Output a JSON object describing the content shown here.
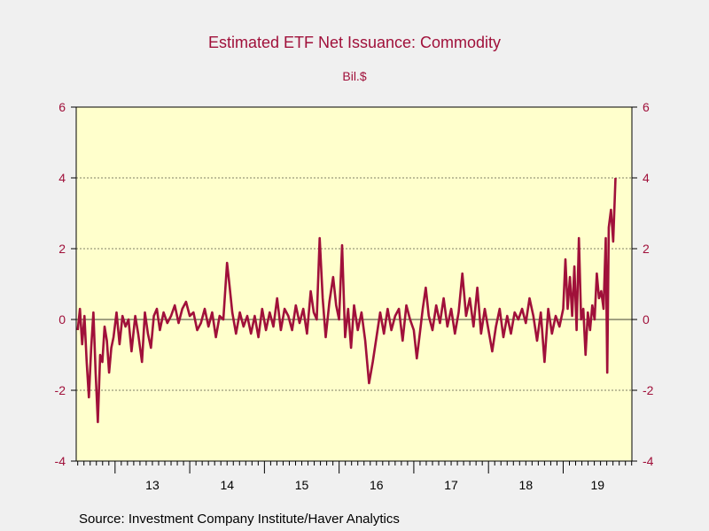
{
  "chart_data": {
    "type": "line",
    "title": "Estimated ETF Net Issuance: Commodity",
    "subtitle": "Bil.$",
    "source": "Source:  Investment Company Institute/Haver Analytics",
    "ylabel": "Bil.$",
    "ylim": [
      -4,
      6
    ],
    "yticks": [
      -4,
      -2,
      0,
      2,
      4,
      6
    ],
    "ytick_labels": [
      "-4",
      "-2",
      "0",
      "2",
      "4",
      "6"
    ],
    "gridlines_at": [
      -2,
      0,
      2,
      4
    ],
    "xlim": [
      2012.48,
      2019.92
    ],
    "year_labels": [
      "13",
      "14",
      "15",
      "16",
      "17",
      "18",
      "19"
    ],
    "year_boundaries": [
      2013,
      2014,
      2015,
      2016,
      2017,
      2018,
      2019
    ],
    "series": [
      {
        "name": "Estimated ETF Net Issuance: Commodity",
        "color": "#a0103a",
        "points": [
          [
            2012.5,
            -0.3
          ],
          [
            2012.53,
            0.3
          ],
          [
            2012.56,
            -0.7
          ],
          [
            2012.59,
            0.1
          ],
          [
            2012.62,
            -1.2
          ],
          [
            2012.65,
            -2.2
          ],
          [
            2012.68,
            -0.8
          ],
          [
            2012.71,
            0.2
          ],
          [
            2012.74,
            -1.5
          ],
          [
            2012.77,
            -2.9
          ],
          [
            2012.8,
            -1.0
          ],
          [
            2012.83,
            -1.2
          ],
          [
            2012.86,
            -0.2
          ],
          [
            2012.89,
            -0.6
          ],
          [
            2012.92,
            -1.5
          ],
          [
            2012.95,
            -0.8
          ],
          [
            2012.98,
            -0.5
          ],
          [
            2013.02,
            0.2
          ],
          [
            2013.06,
            -0.7
          ],
          [
            2013.1,
            0.1
          ],
          [
            2013.14,
            -0.2
          ],
          [
            2013.18,
            0.0
          ],
          [
            2013.22,
            -0.9
          ],
          [
            2013.27,
            0.1
          ],
          [
            2013.31,
            -0.4
          ],
          [
            2013.36,
            -1.2
          ],
          [
            2013.4,
            0.2
          ],
          [
            2013.44,
            -0.4
          ],
          [
            2013.48,
            -0.8
          ],
          [
            2013.52,
            0.1
          ],
          [
            2013.56,
            0.3
          ],
          [
            2013.6,
            -0.3
          ],
          [
            2013.65,
            0.2
          ],
          [
            2013.7,
            -0.1
          ],
          [
            2013.75,
            0.1
          ],
          [
            2013.8,
            0.4
          ],
          [
            2013.85,
            -0.1
          ],
          [
            2013.9,
            0.3
          ],
          [
            2013.95,
            0.5
          ],
          [
            2014.0,
            0.1
          ],
          [
            2014.05,
            0.2
          ],
          [
            2014.1,
            -0.3
          ],
          [
            2014.15,
            -0.1
          ],
          [
            2014.2,
            0.3
          ],
          [
            2014.25,
            -0.2
          ],
          [
            2014.3,
            0.2
          ],
          [
            2014.35,
            -0.5
          ],
          [
            2014.4,
            0.1
          ],
          [
            2014.45,
            0.0
          ],
          [
            2014.5,
            1.6
          ],
          [
            2014.53,
            1.0
          ],
          [
            2014.57,
            0.2
          ],
          [
            2014.62,
            -0.4
          ],
          [
            2014.67,
            0.2
          ],
          [
            2014.72,
            -0.2
          ],
          [
            2014.77,
            0.1
          ],
          [
            2014.82,
            -0.4
          ],
          [
            2014.87,
            0.1
          ],
          [
            2014.92,
            -0.5
          ],
          [
            2014.97,
            0.3
          ],
          [
            2015.02,
            -0.3
          ],
          [
            2015.07,
            0.2
          ],
          [
            2015.12,
            -0.2
          ],
          [
            2015.17,
            0.6
          ],
          [
            2015.22,
            -0.3
          ],
          [
            2015.27,
            0.3
          ],
          [
            2015.32,
            0.1
          ],
          [
            2015.37,
            -0.3
          ],
          [
            2015.42,
            0.4
          ],
          [
            2015.47,
            -0.1
          ],
          [
            2015.52,
            0.3
          ],
          [
            2015.57,
            -0.4
          ],
          [
            2015.62,
            0.8
          ],
          [
            2015.66,
            0.2
          ],
          [
            2015.7,
            0.0
          ],
          [
            2015.74,
            2.3
          ],
          [
            2015.78,
            0.6
          ],
          [
            2015.82,
            -0.5
          ],
          [
            2015.87,
            0.5
          ],
          [
            2015.92,
            1.2
          ],
          [
            2015.96,
            0.4
          ],
          [
            2016.0,
            0.0
          ],
          [
            2016.04,
            2.1
          ],
          [
            2016.08,
            -0.5
          ],
          [
            2016.12,
            0.3
          ],
          [
            2016.16,
            -0.8
          ],
          [
            2016.2,
            0.4
          ],
          [
            2016.25,
            -0.3
          ],
          [
            2016.3,
            0.2
          ],
          [
            2016.35,
            -0.6
          ],
          [
            2016.4,
            -1.8
          ],
          [
            2016.45,
            -1.2
          ],
          [
            2016.5,
            -0.5
          ],
          [
            2016.55,
            0.2
          ],
          [
            2016.6,
            -0.4
          ],
          [
            2016.65,
            0.3
          ],
          [
            2016.7,
            -0.3
          ],
          [
            2016.75,
            0.1
          ],
          [
            2016.8,
            0.3
          ],
          [
            2016.85,
            -0.6
          ],
          [
            2016.9,
            0.4
          ],
          [
            2016.95,
            0.0
          ],
          [
            2017.0,
            -0.3
          ],
          [
            2017.04,
            -1.1
          ],
          [
            2017.08,
            -0.4
          ],
          [
            2017.12,
            0.3
          ],
          [
            2017.16,
            0.9
          ],
          [
            2017.2,
            0.1
          ],
          [
            2017.25,
            -0.3
          ],
          [
            2017.3,
            0.4
          ],
          [
            2017.35,
            -0.1
          ],
          [
            2017.4,
            0.6
          ],
          [
            2017.45,
            -0.2
          ],
          [
            2017.5,
            0.3
          ],
          [
            2017.55,
            -0.4
          ],
          [
            2017.6,
            0.2
          ],
          [
            2017.65,
            1.3
          ],
          [
            2017.7,
            0.1
          ],
          [
            2017.75,
            0.6
          ],
          [
            2017.8,
            -0.2
          ],
          [
            2017.85,
            0.9
          ],
          [
            2017.9,
            -0.4
          ],
          [
            2017.95,
            0.3
          ],
          [
            2018.0,
            -0.3
          ],
          [
            2018.05,
            -0.9
          ],
          [
            2018.1,
            -0.2
          ],
          [
            2018.15,
            0.3
          ],
          [
            2018.2,
            -0.5
          ],
          [
            2018.25,
            0.1
          ],
          [
            2018.3,
            -0.4
          ],
          [
            2018.35,
            0.2
          ],
          [
            2018.4,
            0.0
          ],
          [
            2018.45,
            0.3
          ],
          [
            2018.5,
            -0.1
          ],
          [
            2018.55,
            0.6
          ],
          [
            2018.6,
            0.1
          ],
          [
            2018.65,
            -0.6
          ],
          [
            2018.7,
            0.2
          ],
          [
            2018.75,
            -1.2
          ],
          [
            2018.8,
            0.3
          ],
          [
            2018.85,
            -0.4
          ],
          [
            2018.9,
            0.1
          ],
          [
            2018.95,
            -0.2
          ],
          [
            2019.0,
            0.3
          ],
          [
            2019.03,
            1.7
          ],
          [
            2019.06,
            0.3
          ],
          [
            2019.09,
            1.2
          ],
          [
            2019.12,
            0.1
          ],
          [
            2019.15,
            1.5
          ],
          [
            2019.18,
            -0.3
          ],
          [
            2019.21,
            2.3
          ],
          [
            2019.24,
            0.0
          ],
          [
            2019.27,
            0.3
          ],
          [
            2019.3,
            -1.0
          ],
          [
            2019.33,
            0.2
          ],
          [
            2019.36,
            -0.3
          ],
          [
            2019.39,
            0.4
          ],
          [
            2019.42,
            0.0
          ],
          [
            2019.45,
            1.3
          ],
          [
            2019.48,
            0.6
          ],
          [
            2019.51,
            0.8
          ],
          [
            2019.54,
            0.3
          ],
          [
            2019.57,
            2.3
          ],
          [
            2019.59,
            -1.5
          ],
          [
            2019.61,
            2.6
          ],
          [
            2019.64,
            3.1
          ],
          [
            2019.67,
            2.2
          ],
          [
            2019.7,
            4.0
          ]
        ]
      }
    ]
  }
}
